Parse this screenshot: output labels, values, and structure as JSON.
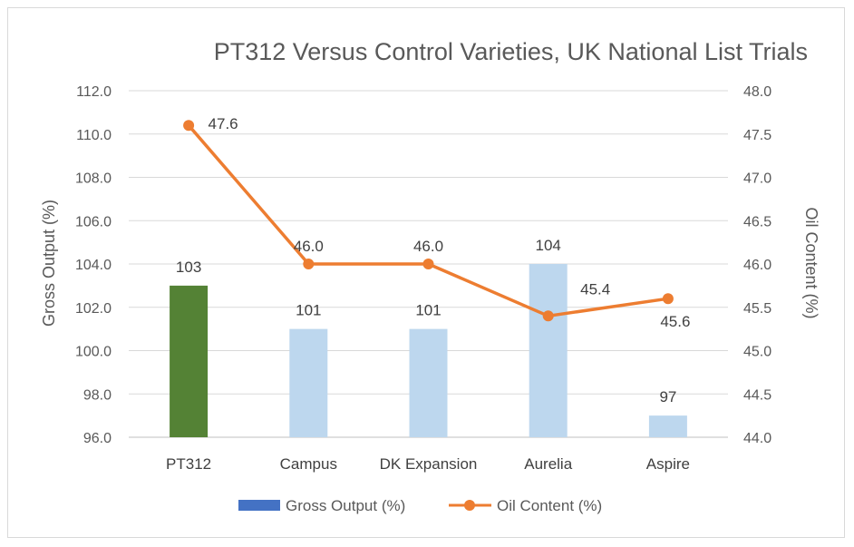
{
  "chart_data": {
    "type": "bar",
    "title": "PT312 Versus Control Varieties, UK National List Trials",
    "categories": [
      "PT312",
      "Campus",
      "DK Expansion",
      "Aurelia",
      "Aspire"
    ],
    "series": [
      {
        "name": "Gross Output (%)",
        "type": "bar",
        "axis": "left",
        "values": [
          103,
          101,
          101,
          104,
          97
        ],
        "value_labels": [
          "103",
          "101",
          "101",
          "104",
          "97"
        ],
        "colors": [
          "#548235",
          "#bdd7ee",
          "#bdd7ee",
          "#bdd7ee",
          "#bdd7ee"
        ],
        "legend_color": "#4472c4"
      },
      {
        "name": "Oil Content (%)",
        "type": "line",
        "axis": "right",
        "values": [
          47.6,
          46.0,
          46.0,
          45.4,
          45.6
        ],
        "value_labels": [
          "47.6",
          "46.0",
          "46.0",
          "45.4",
          "45.6"
        ],
        "color": "#ed7d31"
      }
    ],
    "y_left": {
      "label": "Gross Output (%)",
      "range": [
        96,
        112
      ],
      "ticks": [
        "96.0",
        "98.0",
        "100.0",
        "102.0",
        "104.0",
        "106.0",
        "108.0",
        "110.0",
        "112.0"
      ]
    },
    "y_right": {
      "label": "Oil Content (%)",
      "range": [
        44,
        48
      ],
      "ticks": [
        "44.0",
        "44.5",
        "45.0",
        "45.5",
        "46.0",
        "46.5",
        "47.0",
        "47.5",
        "48.0"
      ]
    },
    "grid": true,
    "legend": "bottom"
  }
}
